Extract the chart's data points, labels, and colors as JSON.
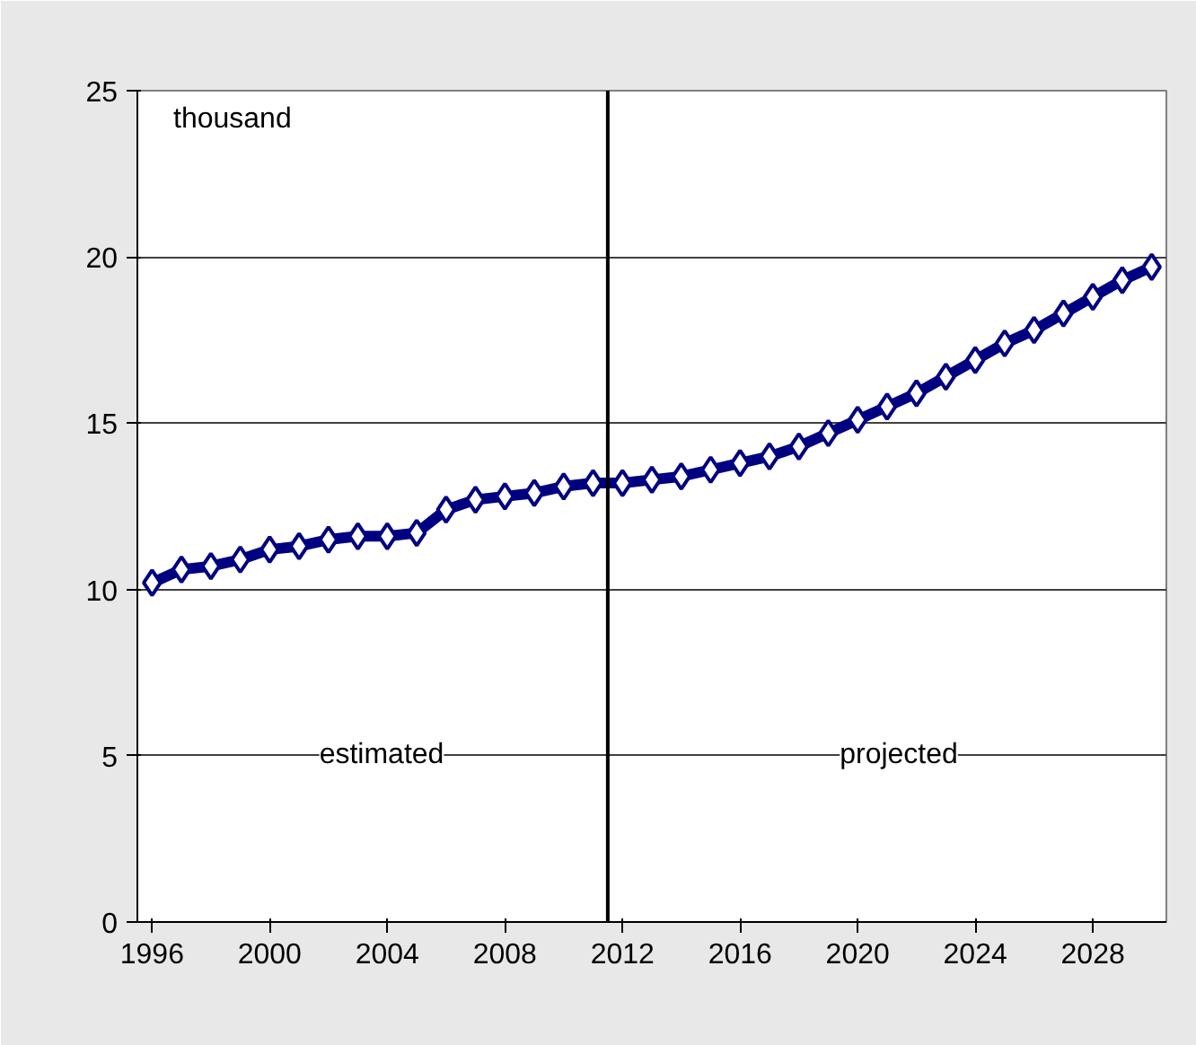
{
  "chart_data": {
    "type": "line",
    "x": [
      1996,
      1997,
      1998,
      1999,
      2000,
      2001,
      2002,
      2003,
      2004,
      2005,
      2006,
      2007,
      2008,
      2009,
      2010,
      2011,
      2012,
      2013,
      2014,
      2015,
      2016,
      2017,
      2018,
      2019,
      2020,
      2021,
      2022,
      2023,
      2024,
      2025,
      2026,
      2027,
      2028,
      2029,
      2030
    ],
    "series": [
      {
        "color": "#000080",
        "values": [
          10.2,
          10.6,
          10.7,
          10.9,
          11.2,
          11.3,
          11.5,
          11.6,
          11.6,
          11.7,
          12.4,
          12.7,
          12.8,
          12.9,
          13.1,
          13.2,
          13.2,
          13.3,
          13.4,
          13.6,
          13.8,
          14.0,
          14.3,
          14.7,
          15.1,
          15.5,
          15.9,
          16.4,
          16.9,
          17.4,
          17.8,
          18.3,
          18.8,
          19.3,
          19.7
        ]
      }
    ],
    "xlim": [
      1995.5,
      2030.5
    ],
    "xticks": [
      1996,
      2000,
      2004,
      2008,
      2012,
      2016,
      2020,
      2024,
      2028
    ],
    "ylim": [
      0,
      25
    ],
    "yticks": [
      0,
      5,
      10,
      15,
      20,
      25
    ],
    "grid": "y",
    "marker": "diamond",
    "line_style": "solid",
    "ref_lines": [
      {
        "axis": "x",
        "value": 2011.5,
        "color": "#000000"
      }
    ],
    "annotations": [
      "thousand",
      "estimated",
      "projected"
    ]
  }
}
